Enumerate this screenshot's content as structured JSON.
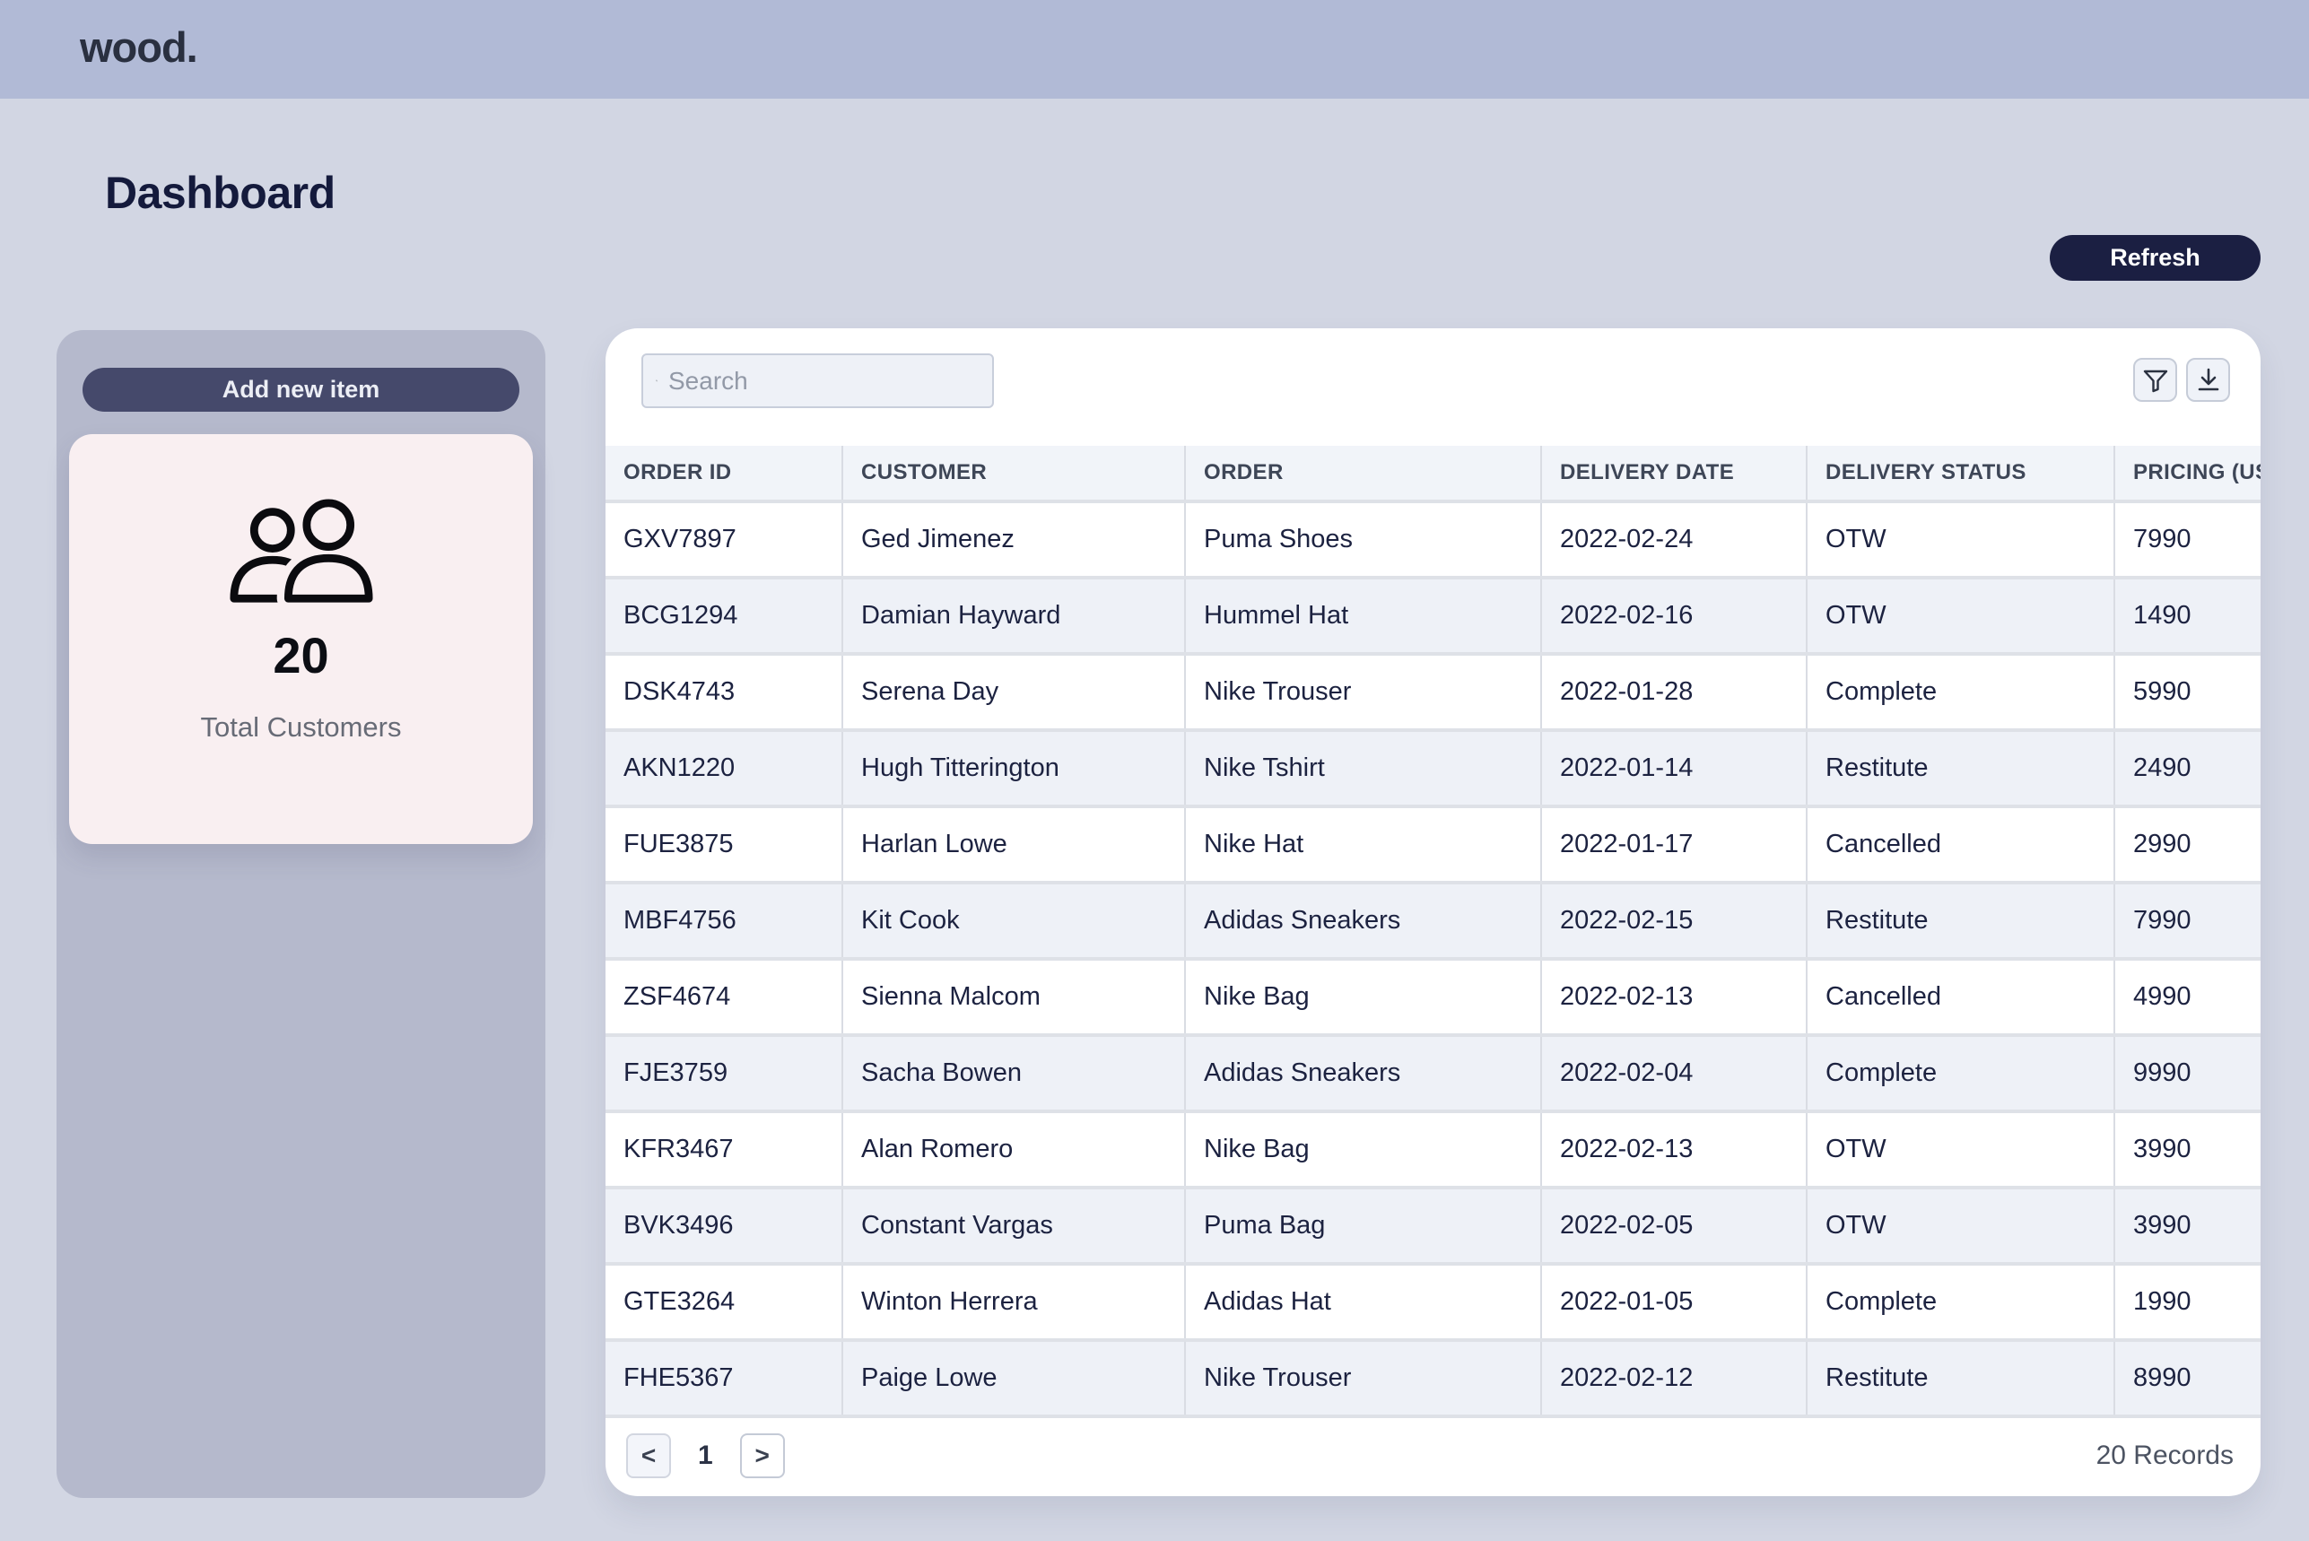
{
  "navbar": {
    "logo": "wood."
  },
  "page": {
    "title": "Dashboard",
    "refresh_label": "Refresh"
  },
  "sidebar": {
    "add_button_label": "Add new item",
    "stat_card": {
      "icon": "people-icon",
      "value": "20",
      "label": "Total Customers"
    }
  },
  "table": {
    "search_placeholder": "Search",
    "toolbar_icons": [
      "filter-icon",
      "download-icon"
    ],
    "columns": [
      "ORDER ID",
      "CUSTOMER",
      "ORDER",
      "DELIVERY DATE",
      "DELIVERY STATUS",
      "PRICING (USD)"
    ],
    "rows": [
      [
        "GXV7897",
        "Ged Jimenez",
        "Puma Shoes",
        "2022-02-24",
        "OTW",
        "7990"
      ],
      [
        "BCG1294",
        "Damian Hayward",
        "Hummel Hat",
        "2022-02-16",
        "OTW",
        "1490"
      ],
      [
        "DSK4743",
        "Serena Day",
        "Nike Trouser",
        "2022-01-28",
        "Complete",
        "5990"
      ],
      [
        "AKN1220",
        "Hugh Titterington",
        "Nike Tshirt",
        "2022-01-14",
        "Restitute",
        "2490"
      ],
      [
        "FUE3875",
        "Harlan Lowe",
        "Nike Hat",
        "2022-01-17",
        "Cancelled",
        "2990"
      ],
      [
        "MBF4756",
        "Kit Cook",
        "Adidas Sneakers",
        "2022-02-15",
        "Restitute",
        "7990"
      ],
      [
        "ZSF4674",
        "Sienna Malcom",
        "Nike Bag",
        "2022-02-13",
        "Cancelled",
        "4990"
      ],
      [
        "FJE3759",
        "Sacha Bowen",
        "Adidas Sneakers",
        "2022-02-04",
        "Complete",
        "9990"
      ],
      [
        "KFR3467",
        "Alan Romero",
        "Nike Bag",
        "2022-02-13",
        "OTW",
        "3990"
      ],
      [
        "BVK3496",
        "Constant Vargas",
        "Puma Bag",
        "2022-02-05",
        "OTW",
        "3990"
      ],
      [
        "GTE3264",
        "Winton Herrera",
        "Adidas Hat",
        "2022-01-05",
        "Complete",
        "1990"
      ],
      [
        "FHE5367",
        "Paige Lowe",
        "Nike Trouser",
        "2022-02-12",
        "Restitute",
        "8990"
      ]
    ],
    "pagination": {
      "prev": "<",
      "page": "1",
      "next": ">",
      "records": "20 Records"
    }
  },
  "colors": {
    "navbar_bg": "#b1bad6",
    "page_bg": "#d2d6e3",
    "sidebar_bg": "#b5b9cc",
    "stat_card_bg": "#f9eff1",
    "accent_dark_navy": "#1b1f42",
    "add_button_bg": "#45496b",
    "table_header_bg": "#f1f4f9",
    "row_alt_bg": "#eef1f7",
    "cell_text": "#1c2240"
  }
}
